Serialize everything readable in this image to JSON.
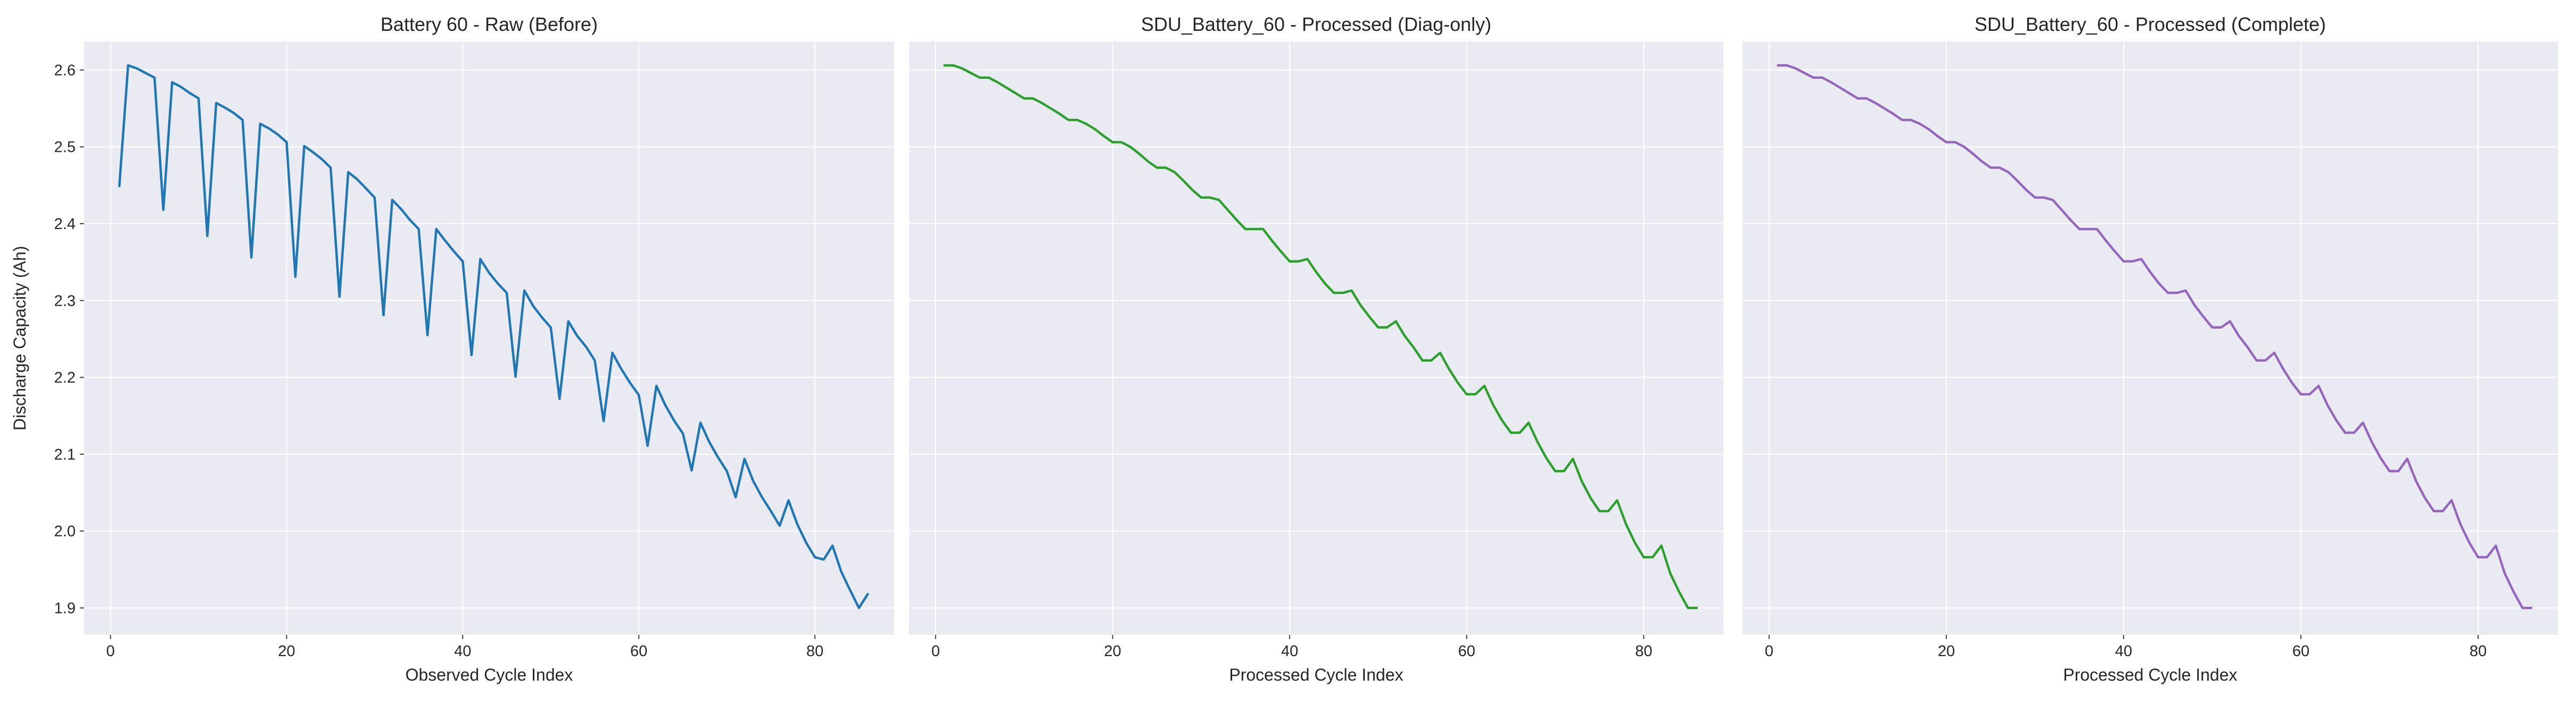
{
  "chart_data": [
    {
      "type": "line",
      "title": "Battery 60 - Raw (Before)",
      "xlabel": "Observed Cycle Index",
      "ylabel": "Discharge Capacity (Ah)",
      "xlim": [
        -3,
        89
      ],
      "ylim": [
        1.865,
        2.637
      ],
      "xticks": [
        0,
        20,
        40,
        60,
        80
      ],
      "yticks": [
        1.9,
        2.0,
        2.1,
        2.2,
        2.3,
        2.4,
        2.5,
        2.6
      ],
      "grid": true,
      "color": "#1f77b4",
      "series": [
        {
          "x": [
            1,
            2,
            3,
            4,
            5,
            6,
            7,
            8,
            9,
            10,
            11,
            12,
            13,
            14,
            15,
            16,
            17,
            18,
            19,
            20,
            21,
            22,
            23,
            24,
            25,
            26,
            27,
            28,
            29,
            30,
            31,
            32,
            33,
            34,
            35,
            36,
            37,
            38,
            39,
            40,
            41,
            42,
            43,
            44,
            45,
            46,
            47,
            48,
            49,
            50,
            51,
            52,
            53,
            54,
            55,
            56,
            57,
            58,
            59,
            60,
            61,
            62,
            63,
            64,
            65,
            66,
            67,
            68,
            69,
            70,
            71,
            72,
            73,
            74,
            75,
            76,
            77,
            78,
            79,
            80,
            81,
            82,
            83,
            84,
            85,
            86
          ],
          "values": [
            2.449,
            2.606,
            2.602,
            2.596,
            2.59,
            2.418,
            2.584,
            2.578,
            2.57,
            2.563,
            2.384,
            2.557,
            2.551,
            2.544,
            2.535,
            2.356,
            2.53,
            2.524,
            2.516,
            2.506,
            2.331,
            2.501,
            2.493,
            2.484,
            2.473,
            2.305,
            2.467,
            2.458,
            2.446,
            2.434,
            2.281,
            2.431,
            2.419,
            2.405,
            2.393,
            2.255,
            2.393,
            2.378,
            2.364,
            2.351,
            2.229,
            2.354,
            2.336,
            2.322,
            2.31,
            2.201,
            2.313,
            2.293,
            2.278,
            2.265,
            2.172,
            2.273,
            2.254,
            2.24,
            2.222,
            2.143,
            2.232,
            2.211,
            2.193,
            2.177,
            2.111,
            2.189,
            2.164,
            2.144,
            2.127,
            2.079,
            2.141,
            2.116,
            2.096,
            2.078,
            2.044,
            2.094,
            2.065,
            2.044,
            2.026,
            2.007,
            2.04,
            2.009,
            1.985,
            1.966,
            1.963,
            1.981,
            1.947,
            1.923,
            1.9,
            1.918
          ]
        }
      ]
    },
    {
      "type": "line",
      "title": "SDU_Battery_60 - Processed (Diag-only)",
      "xlabel": "Processed Cycle Index",
      "ylabel": "",
      "xlim": [
        -3,
        89
      ],
      "ylim": [
        1.865,
        2.637
      ],
      "xticks": [
        0,
        20,
        40,
        60,
        80
      ],
      "yticks": [
        1.9,
        2.0,
        2.1,
        2.2,
        2.3,
        2.4,
        2.5,
        2.6
      ],
      "grid": true,
      "color": "#2ca02c",
      "series": [
        {
          "x": [
            1,
            2,
            3,
            4,
            5,
            6,
            7,
            8,
            9,
            10,
            11,
            12,
            13,
            14,
            15,
            16,
            17,
            18,
            19,
            20,
            21,
            22,
            23,
            24,
            25,
            26,
            27,
            28,
            29,
            30,
            31,
            32,
            33,
            34,
            35,
            36,
            37,
            38,
            39,
            40,
            41,
            42,
            43,
            44,
            45,
            46,
            47,
            48,
            49,
            50,
            51,
            52,
            53,
            54,
            55,
            56,
            57,
            58,
            59,
            60,
            61,
            62,
            63,
            64,
            65,
            66,
            67,
            68,
            69,
            70,
            71,
            72,
            73,
            74,
            75,
            76,
            77,
            78,
            79,
            80,
            81,
            82,
            83,
            84,
            85,
            86
          ],
          "values": [
            2.606,
            2.606,
            2.602,
            2.596,
            2.59,
            2.59,
            2.584,
            2.577,
            2.57,
            2.563,
            2.563,
            2.557,
            2.55,
            2.543,
            2.535,
            2.535,
            2.53,
            2.523,
            2.514,
            2.506,
            2.506,
            2.5,
            2.491,
            2.481,
            2.473,
            2.473,
            2.467,
            2.456,
            2.444,
            2.434,
            2.434,
            2.431,
            2.418,
            2.405,
            2.393,
            2.393,
            2.393,
            2.378,
            2.364,
            2.351,
            2.351,
            2.354,
            2.337,
            2.322,
            2.31,
            2.31,
            2.313,
            2.294,
            2.279,
            2.265,
            2.265,
            2.273,
            2.254,
            2.239,
            2.222,
            2.222,
            2.232,
            2.211,
            2.193,
            2.178,
            2.178,
            2.189,
            2.164,
            2.144,
            2.128,
            2.128,
            2.141,
            2.116,
            2.095,
            2.078,
            2.078,
            2.094,
            2.065,
            2.043,
            2.026,
            2.026,
            2.04,
            2.009,
            1.985,
            1.966,
            1.966,
            1.981,
            1.945,
            1.921,
            1.9,
            1.9
          ]
        }
      ]
    },
    {
      "type": "line",
      "title": "SDU_Battery_60 - Processed (Complete)",
      "xlabel": "Processed Cycle Index",
      "ylabel": "",
      "xlim": [
        -3,
        89
      ],
      "ylim": [
        1.865,
        2.637
      ],
      "xticks": [
        0,
        20,
        40,
        60,
        80
      ],
      "yticks": [
        1.9,
        2.0,
        2.1,
        2.2,
        2.3,
        2.4,
        2.5,
        2.6
      ],
      "grid": true,
      "color": "#9467bd",
      "series": [
        {
          "x": [
            1,
            2,
            3,
            4,
            5,
            6,
            7,
            8,
            9,
            10,
            11,
            12,
            13,
            14,
            15,
            16,
            17,
            18,
            19,
            20,
            21,
            22,
            23,
            24,
            25,
            26,
            27,
            28,
            29,
            30,
            31,
            32,
            33,
            34,
            35,
            36,
            37,
            38,
            39,
            40,
            41,
            42,
            43,
            44,
            45,
            46,
            47,
            48,
            49,
            50,
            51,
            52,
            53,
            54,
            55,
            56,
            57,
            58,
            59,
            60,
            61,
            62,
            63,
            64,
            65,
            66,
            67,
            68,
            69,
            70,
            71,
            72,
            73,
            74,
            75,
            76,
            77,
            78,
            79,
            80,
            81,
            82,
            83,
            84,
            85,
            86
          ],
          "values": [
            2.606,
            2.606,
            2.602,
            2.596,
            2.59,
            2.59,
            2.584,
            2.577,
            2.57,
            2.563,
            2.563,
            2.557,
            2.55,
            2.543,
            2.535,
            2.535,
            2.53,
            2.523,
            2.514,
            2.506,
            2.506,
            2.5,
            2.491,
            2.481,
            2.473,
            2.473,
            2.467,
            2.456,
            2.444,
            2.434,
            2.434,
            2.431,
            2.418,
            2.405,
            2.393,
            2.393,
            2.393,
            2.378,
            2.364,
            2.351,
            2.351,
            2.354,
            2.337,
            2.322,
            2.31,
            2.31,
            2.313,
            2.294,
            2.279,
            2.265,
            2.265,
            2.273,
            2.254,
            2.239,
            2.222,
            2.222,
            2.232,
            2.211,
            2.193,
            2.178,
            2.178,
            2.189,
            2.164,
            2.144,
            2.128,
            2.128,
            2.141,
            2.116,
            2.095,
            2.078,
            2.078,
            2.094,
            2.065,
            2.043,
            2.026,
            2.026,
            2.04,
            2.009,
            1.985,
            1.966,
            1.966,
            1.981,
            1.945,
            1.921,
            1.9,
            1.9
          ]
        }
      ]
    }
  ]
}
